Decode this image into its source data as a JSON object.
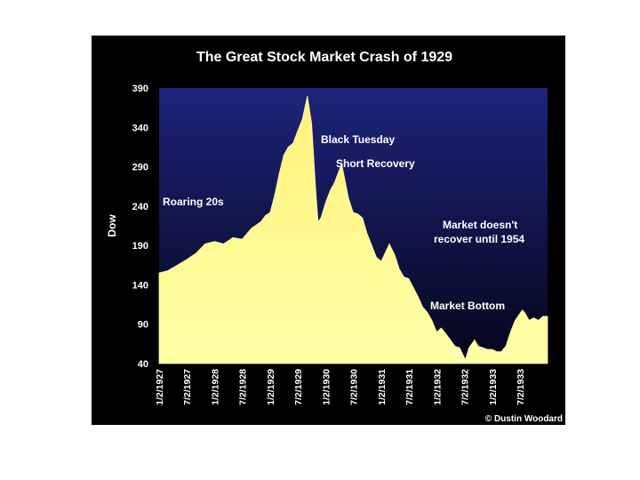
{
  "chart_data": {
    "type": "area",
    "title": "The Great Stock Market Crash of 1929",
    "ylabel": "Dow",
    "xlabel": "",
    "ylim": [
      40,
      390
    ],
    "yticks": [
      40,
      90,
      140,
      190,
      240,
      290,
      340,
      390
    ],
    "xtick_labels": [
      "1/2/1927",
      "7/2/1927",
      "1/2/1928",
      "7/2/1928",
      "1/2/1929",
      "7/2/1929",
      "1/2/1930",
      "7/2/1930",
      "1/2/1931",
      "7/2/1931",
      "1/2/1932",
      "7/2/1932",
      "1/2/1933",
      "7/2/1933"
    ],
    "xlim": [
      "1/2/1927",
      "12/31/1933"
    ],
    "grid": false,
    "series": [
      {
        "x": [
          "1/2/1927",
          "3/1/1927",
          "5/1/1927",
          "7/1/1927",
          "9/1/1927",
          "11/1/1927",
          "1/2/1928",
          "3/1/1928",
          "5/1/1928",
          "7/1/1928",
          "9/1/1928",
          "11/1/1928",
          "12/1/1928",
          "1/2/1929",
          "2/1/1929",
          "3/1/1929",
          "4/1/1929",
          "5/1/1929",
          "6/1/1929",
          "7/1/1929",
          "8/1/1929",
          "9/3/1929",
          "10/1/1929",
          "10/28/1929",
          "11/13/1929",
          "12/1/1929",
          "1/2/1930",
          "2/1/1930",
          "3/1/1930",
          "4/17/1930",
          "5/1/1930",
          "6/1/1930",
          "7/1/1930",
          "8/1/1930",
          "9/1/1930",
          "10/1/1930",
          "11/1/1930",
          "12/1/1930",
          "1/2/1931",
          "2/24/1931",
          "4/1/1931",
          "5/1/1931",
          "6/1/1931",
          "7/1/1931",
          "9/1/1931",
          "10/1/1931",
          "11/1/1931",
          "12/1/1931",
          "1/2/1932",
          "2/1/1932",
          "3/1/1932",
          "4/1/1932",
          "5/1/1932",
          "6/1/1932",
          "7/8/1932",
          "8/1/1932",
          "9/7/1932",
          "10/1/1932",
          "11/1/1932",
          "12/1/1932",
          "1/2/1933",
          "2/1/1933",
          "3/1/1933",
          "4/1/1933",
          "5/1/1933",
          "6/1/1933",
          "7/18/1933",
          "8/1/1933",
          "9/1/1933",
          "10/1/1933",
          "11/1/1933",
          "12/1/1933",
          "12/31/1933"
        ],
        "values": [
          155,
          158,
          165,
          172,
          180,
          192,
          195,
          192,
          200,
          198,
          212,
          220,
          228,
          232,
          255,
          280,
          305,
          315,
          320,
          335,
          350,
          380,
          345,
          260,
          220,
          225,
          245,
          260,
          270,
          294,
          280,
          250,
          232,
          230,
          225,
          205,
          190,
          175,
          170,
          192,
          178,
          160,
          150,
          148,
          125,
          112,
          105,
          95,
          80,
          85,
          78,
          70,
          62,
          60,
          45,
          60,
          70,
          62,
          60,
          58,
          58,
          55,
          55,
          62,
          80,
          95,
          108,
          105,
          95,
          98,
          95,
          100,
          100
        ]
      }
    ],
    "annotations": [
      "Roaring 20s",
      "Black Tuesday",
      "Short Recovery",
      "Market doesn't",
      "recover until 1954",
      "Market Bottom"
    ],
    "credit": "© Dustin Woodard",
    "colors": {
      "background": "#000000",
      "plot_top": "#1e237a",
      "plot_bottom": "#05061a",
      "fill_top": "#fff27a",
      "fill_bottom": "#ffffa8",
      "text": "#ffffff"
    }
  }
}
